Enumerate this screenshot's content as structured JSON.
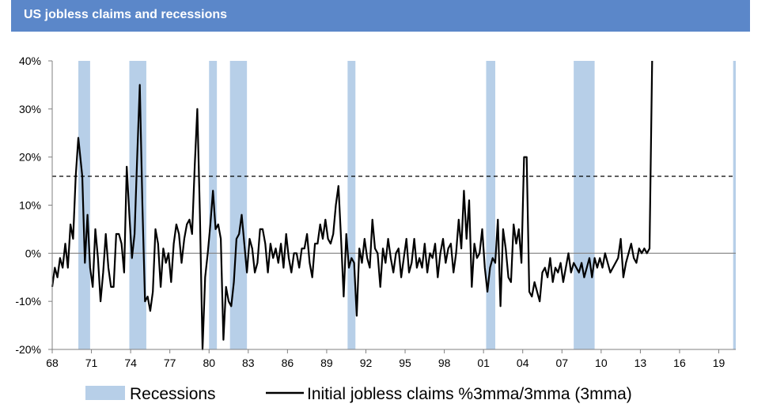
{
  "header": {
    "title": "US jobless claims and recessions"
  },
  "chart_data": {
    "type": "line",
    "title": "US jobless claims and recessions",
    "xlabel": "",
    "ylabel": "",
    "x_range": [
      1968,
      2020.3
    ],
    "ylim": [
      -20,
      40
    ],
    "y_ticks": [
      -20,
      -10,
      0,
      10,
      20,
      30,
      40
    ],
    "y_tick_labels": [
      "-20%",
      "-10%",
      "0%",
      "10%",
      "20%",
      "30%",
      "40%"
    ],
    "x_ticks": [
      1968,
      1971,
      1974,
      1977,
      1980,
      1983,
      1986,
      1989,
      1992,
      1995,
      1998,
      2001,
      2004,
      2007,
      2010,
      2013,
      2016,
      2019
    ],
    "x_tick_labels": [
      "68",
      "71",
      "74",
      "77",
      "80",
      "83",
      "86",
      "89",
      "92",
      "95",
      "98",
      "01",
      "04",
      "07",
      "10",
      "13",
      "16",
      "19"
    ],
    "threshold": {
      "value": 16,
      "style": "dashed"
    },
    "zero_line": true,
    "recessions": [
      [
        1970.0,
        1970.9
      ],
      [
        1973.9,
        1975.2
      ],
      [
        1980.0,
        1980.6
      ],
      [
        1981.6,
        1982.9
      ],
      [
        1990.6,
        1991.2
      ],
      [
        2001.2,
        2001.9
      ],
      [
        2007.9,
        2009.5
      ],
      [
        2020.1,
        2020.3
      ]
    ],
    "legend": {
      "position": "bottom",
      "entries": [
        {
          "label": "Recessions",
          "kind": "band",
          "color": "#b7cfe8"
        },
        {
          "label": "Initial jobless claims %3mma/3mma (3mma)",
          "kind": "line",
          "color": "#000000"
        }
      ]
    },
    "series": [
      {
        "name": "Initial jobless claims %3mma/3mma (3mma)",
        "color": "#000000",
        "points": [
          [
            1968.0,
            -7
          ],
          [
            1968.2,
            -3
          ],
          [
            1968.4,
            -5
          ],
          [
            1968.6,
            -1
          ],
          [
            1968.8,
            -3
          ],
          [
            1969.0,
            2
          ],
          [
            1969.2,
            -3
          ],
          [
            1969.4,
            6
          ],
          [
            1969.6,
            3
          ],
          [
            1969.8,
            16
          ],
          [
            1970.0,
            24
          ],
          [
            1970.3,
            16
          ],
          [
            1970.5,
            -2
          ],
          [
            1970.7,
            8
          ],
          [
            1970.9,
            -3
          ],
          [
            1971.1,
            -7
          ],
          [
            1971.3,
            5
          ],
          [
            1971.5,
            -1
          ],
          [
            1971.7,
            -10
          ],
          [
            1971.9,
            -4
          ],
          [
            1972.1,
            4
          ],
          [
            1972.3,
            -3
          ],
          [
            1972.5,
            -7
          ],
          [
            1972.7,
            -7
          ],
          [
            1972.9,
            4
          ],
          [
            1973.1,
            4
          ],
          [
            1973.3,
            2
          ],
          [
            1973.5,
            -4
          ],
          [
            1973.7,
            18
          ],
          [
            1973.9,
            8
          ],
          [
            1974.1,
            -1
          ],
          [
            1974.3,
            4
          ],
          [
            1974.5,
            20
          ],
          [
            1974.7,
            35
          ],
          [
            1974.9,
            10
          ],
          [
            1975.1,
            -10
          ],
          [
            1975.3,
            -9
          ],
          [
            1975.5,
            -12
          ],
          [
            1975.7,
            -8
          ],
          [
            1975.9,
            5
          ],
          [
            1976.1,
            2
          ],
          [
            1976.3,
            -7
          ],
          [
            1976.5,
            1
          ],
          [
            1976.7,
            -2
          ],
          [
            1976.9,
            0
          ],
          [
            1977.1,
            -6
          ],
          [
            1977.3,
            2
          ],
          [
            1977.5,
            6
          ],
          [
            1977.7,
            4
          ],
          [
            1977.9,
            -2
          ],
          [
            1978.1,
            3
          ],
          [
            1978.3,
            6
          ],
          [
            1978.5,
            7
          ],
          [
            1978.7,
            4
          ],
          [
            1978.9,
            18
          ],
          [
            1979.1,
            30
          ],
          [
            1979.3,
            8
          ],
          [
            1979.5,
            -20
          ],
          [
            1979.7,
            -5
          ],
          [
            1979.9,
            0
          ],
          [
            1980.1,
            6
          ],
          [
            1980.3,
            13
          ],
          [
            1980.5,
            5
          ],
          [
            1980.7,
            6
          ],
          [
            1980.9,
            3
          ],
          [
            1981.1,
            -18
          ],
          [
            1981.3,
            -7
          ],
          [
            1981.5,
            -10
          ],
          [
            1981.7,
            -11
          ],
          [
            1981.9,
            -6
          ],
          [
            1982.1,
            3
          ],
          [
            1982.3,
            4
          ],
          [
            1982.5,
            8
          ],
          [
            1982.7,
            2
          ],
          [
            1982.9,
            -4
          ],
          [
            1983.1,
            3
          ],
          [
            1983.3,
            1
          ],
          [
            1983.5,
            -4
          ],
          [
            1983.7,
            -2
          ],
          [
            1983.9,
            5
          ],
          [
            1984.1,
            5
          ],
          [
            1984.3,
            2
          ],
          [
            1984.5,
            -4
          ],
          [
            1984.7,
            2
          ],
          [
            1984.9,
            -1
          ],
          [
            1985.1,
            1
          ],
          [
            1985.3,
            -2
          ],
          [
            1985.5,
            2
          ],
          [
            1985.7,
            -3
          ],
          [
            1985.9,
            4
          ],
          [
            1986.1,
            -1
          ],
          [
            1986.3,
            -4
          ],
          [
            1986.5,
            0
          ],
          [
            1986.7,
            0
          ],
          [
            1986.9,
            -3
          ],
          [
            1987.1,
            1
          ],
          [
            1987.3,
            1
          ],
          [
            1987.5,
            4
          ],
          [
            1987.7,
            -2
          ],
          [
            1987.9,
            -5
          ],
          [
            1988.1,
            2
          ],
          [
            1988.3,
            2
          ],
          [
            1988.5,
            6
          ],
          [
            1988.7,
            3
          ],
          [
            1988.9,
            7
          ],
          [
            1989.1,
            3
          ],
          [
            1989.3,
            2
          ],
          [
            1989.5,
            4
          ],
          [
            1989.7,
            10
          ],
          [
            1989.9,
            14
          ],
          [
            1990.1,
            3
          ],
          [
            1990.3,
            -9
          ],
          [
            1990.5,
            4
          ],
          [
            1990.7,
            -3
          ],
          [
            1990.9,
            -1
          ],
          [
            1991.1,
            -2
          ],
          [
            1991.3,
            -13
          ],
          [
            1991.5,
            1
          ],
          [
            1991.7,
            -2
          ],
          [
            1991.9,
            3
          ],
          [
            1992.1,
            -1
          ],
          [
            1992.3,
            -3
          ],
          [
            1992.5,
            7
          ],
          [
            1992.7,
            1
          ],
          [
            1992.9,
            0
          ],
          [
            1993.1,
            -7
          ],
          [
            1993.3,
            1
          ],
          [
            1993.5,
            -2
          ],
          [
            1993.7,
            3
          ],
          [
            1993.9,
            -1
          ],
          [
            1994.1,
            -4
          ],
          [
            1994.3,
            0
          ],
          [
            1994.5,
            1
          ],
          [
            1994.7,
            -5
          ],
          [
            1994.9,
            -1
          ],
          [
            1995.1,
            3
          ],
          [
            1995.3,
            -4
          ],
          [
            1995.5,
            -2
          ],
          [
            1995.7,
            3
          ],
          [
            1995.9,
            -3
          ],
          [
            1996.1,
            -1
          ],
          [
            1996.3,
            -3
          ],
          [
            1996.5,
            2
          ],
          [
            1996.7,
            -4
          ],
          [
            1996.9,
            0
          ],
          [
            1997.1,
            -1
          ],
          [
            1997.3,
            2
          ],
          [
            1997.5,
            -5
          ],
          [
            1997.7,
            0
          ],
          [
            1997.9,
            3
          ],
          [
            1998.1,
            -2
          ],
          [
            1998.3,
            1
          ],
          [
            1998.5,
            2
          ],
          [
            1998.7,
            -4
          ],
          [
            1998.9,
            0
          ],
          [
            1999.1,
            7
          ],
          [
            1999.3,
            1
          ],
          [
            1999.5,
            13
          ],
          [
            1999.7,
            3
          ],
          [
            1999.9,
            11
          ],
          [
            2000.1,
            -7
          ],
          [
            2000.3,
            2
          ],
          [
            2000.5,
            -1
          ],
          [
            2000.7,
            0
          ],
          [
            2000.9,
            5
          ],
          [
            2001.1,
            -3
          ],
          [
            2001.3,
            -8
          ],
          [
            2001.5,
            -3
          ],
          [
            2001.7,
            -1
          ],
          [
            2001.9,
            -2
          ],
          [
            2002.1,
            7
          ],
          [
            2002.3,
            -11
          ],
          [
            2002.5,
            5
          ],
          [
            2002.7,
            1
          ],
          [
            2002.9,
            -5
          ],
          [
            2003.1,
            -6
          ],
          [
            2003.3,
            6
          ],
          [
            2003.5,
            2
          ],
          [
            2003.7,
            5
          ],
          [
            2003.9,
            -2
          ],
          [
            2004.1,
            20
          ],
          [
            2004.3,
            20
          ],
          [
            2004.5,
            -8
          ],
          [
            2004.7,
            -9
          ],
          [
            2004.9,
            -6
          ],
          [
            2005.1,
            -8
          ],
          [
            2005.3,
            -10
          ],
          [
            2005.5,
            -4
          ],
          [
            2005.7,
            -3
          ],
          [
            2005.9,
            -5
          ],
          [
            2006.1,
            -1
          ],
          [
            2006.3,
            -6
          ],
          [
            2006.5,
            -3
          ],
          [
            2006.7,
            -4
          ],
          [
            2006.9,
            -2
          ],
          [
            2007.1,
            -6
          ],
          [
            2007.3,
            -3
          ],
          [
            2007.5,
            0
          ],
          [
            2007.7,
            -4
          ],
          [
            2007.9,
            -2
          ],
          [
            2008.1,
            -3
          ],
          [
            2008.3,
            -4
          ],
          [
            2008.5,
            -2
          ],
          [
            2008.7,
            -5
          ],
          [
            2008.9,
            -3
          ],
          [
            2009.1,
            -1
          ],
          [
            2009.3,
            -5
          ],
          [
            2009.5,
            -1
          ],
          [
            2009.7,
            -3
          ],
          [
            2009.9,
            -1
          ],
          [
            2010.1,
            -3
          ],
          [
            2010.3,
            0
          ],
          [
            2010.5,
            -2
          ],
          [
            2010.7,
            -4
          ],
          [
            2010.9,
            -3
          ],
          [
            2011.1,
            -2
          ],
          [
            2011.3,
            -1
          ],
          [
            2011.5,
            3
          ],
          [
            2011.7,
            -5
          ],
          [
            2011.9,
            -2
          ],
          [
            2012.1,
            0
          ],
          [
            2012.3,
            2
          ],
          [
            2012.5,
            -1
          ],
          [
            2012.7,
            -2
          ],
          [
            2012.9,
            1
          ],
          [
            2013.1,
            0
          ],
          [
            2013.3,
            1
          ],
          [
            2013.5,
            0
          ],
          [
            2013.7,
            1
          ],
          [
            2013.9,
            40
          ]
        ]
      }
    ]
  }
}
